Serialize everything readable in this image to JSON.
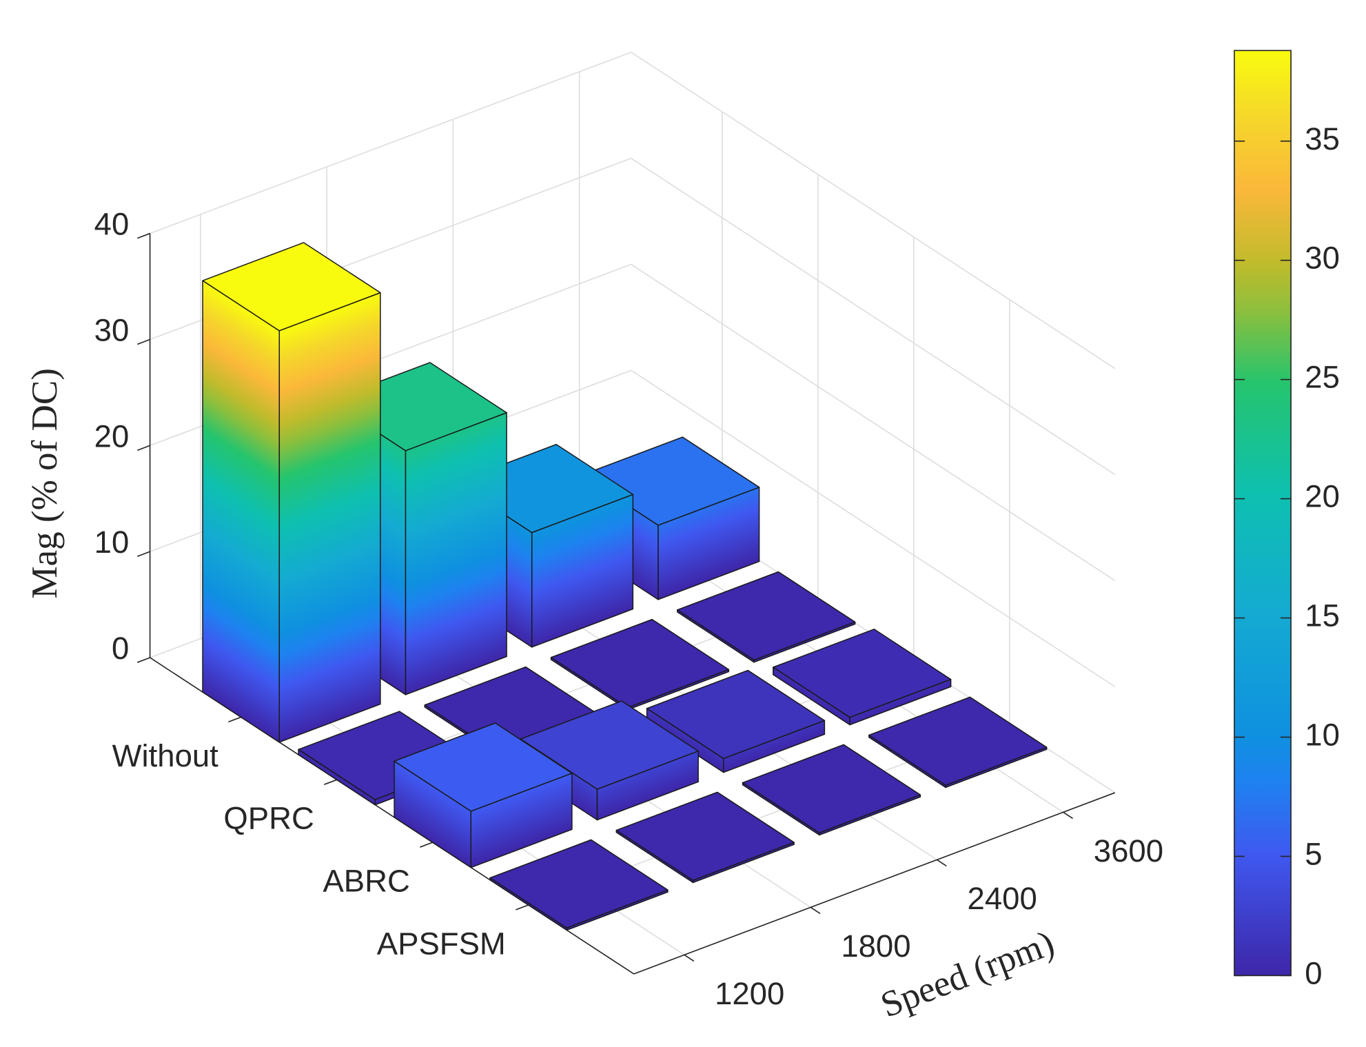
{
  "chart_data": {
    "type": "bar3",
    "zlabel": "Mag (% of DC)",
    "xlabel": "Speed (rpm)",
    "categories": [
      "1200",
      "1800",
      "2400",
      "3600"
    ],
    "series": [
      {
        "name": "Without",
        "values": [
          38.8,
          23,
          10.8,
          7
        ]
      },
      {
        "name": "QPRC",
        "values": [
          0.5,
          0.2,
          0.2,
          0.2
        ]
      },
      {
        "name": "ABRC",
        "values": [
          5.3,
          2.9,
          1.3,
          0.7
        ]
      },
      {
        "name": "APSFSM",
        "values": [
          0.2,
          0.2,
          0.2,
          0.2
        ]
      }
    ],
    "zlim": [
      0,
      40
    ],
    "zticks": [
      0,
      10,
      20,
      30,
      40
    ],
    "grid": true,
    "colormap": "parula",
    "clim": [
      0,
      38.8
    ],
    "colorbar_ticks": [
      0,
      5,
      10,
      15,
      20,
      25,
      30,
      35
    ]
  }
}
